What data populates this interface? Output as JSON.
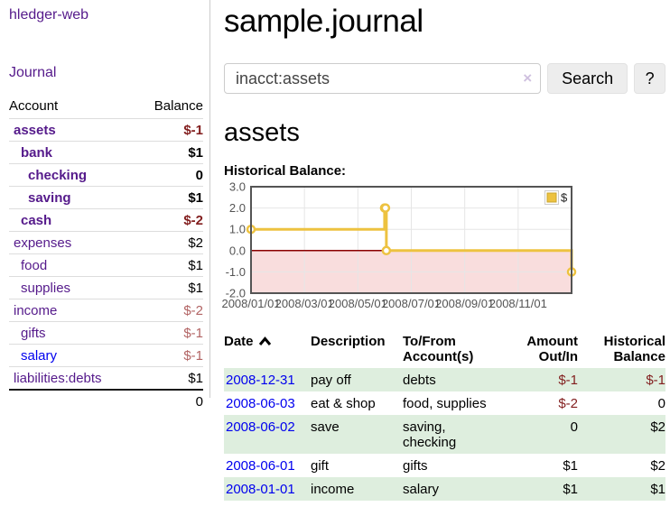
{
  "app": {
    "brand": "hledger-web"
  },
  "nav": {
    "journal": "Journal"
  },
  "colors": {
    "link_purple": "#551a8b",
    "link_blue": "#0000ee",
    "negative_strong": "#821e1e",
    "negative_soft": "#b26464",
    "row_green": "#deeede",
    "series_gold": "#edc240",
    "divider_gray": "#cccccc"
  },
  "sidebar": {
    "accounts": {
      "header": {
        "account": "Account",
        "balance": "Balance"
      },
      "rows": [
        {
          "name": "assets",
          "balance": "$-1"
        },
        {
          "name": "bank",
          "balance": "$1"
        },
        {
          "name": "checking",
          "balance": "0"
        },
        {
          "name": "saving",
          "balance": "$1"
        },
        {
          "name": "cash",
          "balance": "$-2"
        },
        {
          "name": "expenses",
          "balance": "$2"
        },
        {
          "name": "food",
          "balance": "$1"
        },
        {
          "name": "supplies",
          "balance": "$1"
        },
        {
          "name": "income",
          "balance": "$-2"
        },
        {
          "name": "gifts",
          "balance": "$-1"
        },
        {
          "name": "salary",
          "balance": "$-1"
        },
        {
          "name": "liabilities:debts",
          "balance": "$1"
        }
      ],
      "total": "0"
    }
  },
  "main": {
    "title": "sample.journal",
    "search": {
      "value": "inacct:assets",
      "clear_icon": "×",
      "search_button": "Search",
      "help_button": "?"
    },
    "account_heading": "assets",
    "register": {
      "headers": {
        "date": "Date",
        "description": "Description",
        "tofrom": "To/From Account(s)",
        "amount": "Amount Out/In",
        "balance": "Historical Balance"
      },
      "rows": [
        {
          "date": "2008-12-31",
          "description": "pay off",
          "accounts": "debts",
          "amount": "$-1",
          "balance": "$-1"
        },
        {
          "date": "2008-06-03",
          "description": "eat & shop",
          "accounts": "food, supplies",
          "amount": "$-2",
          "balance": "0"
        },
        {
          "date": "2008-06-02",
          "description": "save",
          "accounts": "saving, checking",
          "amount": "0",
          "balance": "$2"
        },
        {
          "date": "2008-06-01",
          "description": "gift",
          "accounts": "gifts",
          "amount": "$1",
          "balance": "$2"
        },
        {
          "date": "2008-01-01",
          "description": "income",
          "accounts": "salary",
          "amount": "$1",
          "balance": "$1"
        }
      ]
    }
  },
  "chart_data": {
    "type": "line",
    "step": true,
    "title": "Historical Balance:",
    "series": [
      {
        "name": "$",
        "color": "#edc240",
        "points": [
          [
            "2008-01-01",
            1
          ],
          [
            "2008-06-01",
            2
          ],
          [
            "2008-06-02",
            2
          ],
          [
            "2008-06-03",
            0
          ],
          [
            "2008-12-31",
            -1
          ]
        ]
      }
    ],
    "ylim": [
      -2,
      3
    ],
    "yticks": [
      "3.0",
      "2.0",
      "1.0",
      "0.0",
      "-1.0",
      "-2.0"
    ],
    "xticks": [
      "2008/01/01",
      "2008/03/01",
      "2008/05/01",
      "2008/07/01",
      "2008/09/01",
      "2008/11/01"
    ],
    "legend_position": "top-right",
    "grid": true,
    "grid_color": "#e6e6e6",
    "negative_fill": "#f9dddd",
    "zero_line_color": "#8b0000",
    "border_color": "#545454"
  }
}
